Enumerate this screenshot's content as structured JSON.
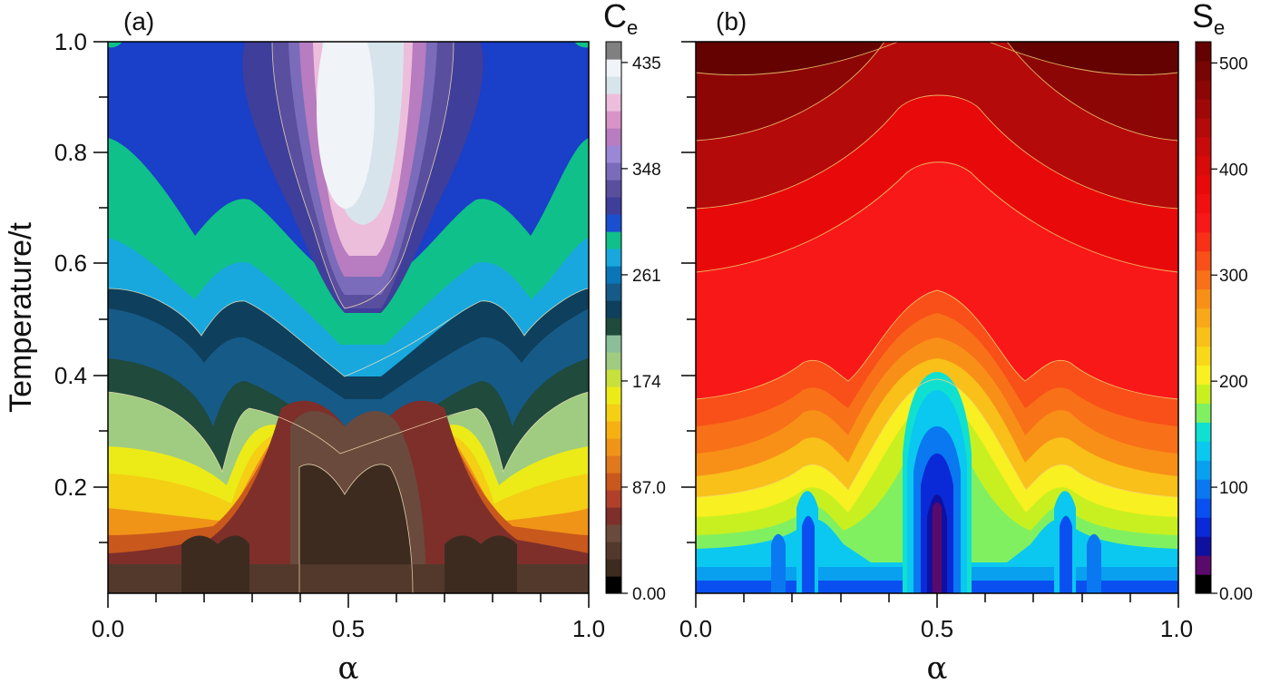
{
  "chart_data": [
    {
      "type": "heatmap",
      "panel_label": "(a)",
      "xlabel": "α",
      "ylabel": "Temperature/t",
      "xlim": [
        0.0,
        1.0
      ],
      "ylim": [
        0.0,
        1.0
      ],
      "x_ticks": [
        "0.0",
        "0.5",
        "1.0"
      ],
      "y_ticks": [
        "0.2",
        "0.4",
        "0.6",
        "0.8",
        "1.0"
      ],
      "colorbar": {
        "title": "C",
        "title_sub": "e",
        "range": [
          0,
          452
        ],
        "tick_values": [
          0,
          87,
          174,
          261,
          348,
          435
        ],
        "tick_labels": [
          "0.00",
          "87.0",
          "174",
          "261",
          "348",
          "435"
        ],
        "colors": [
          "#000000",
          "#3d2b20",
          "#52392b",
          "#6a4a3c",
          "#7e2f2a",
          "#b0402a",
          "#c9581c",
          "#e0781c",
          "#f09418",
          "#f6b012",
          "#f4cf14",
          "#eceb18",
          "#c8e03c",
          "#9fcc80",
          "#8bbf9a",
          "#1f4a3c",
          "#0e3f5c",
          "#165a88",
          "#0a76b8",
          "#18a8de",
          "#10c08a",
          "#1a4fd0",
          "#3f3e9a",
          "#5a4e9e",
          "#7a6cba",
          "#9a88d6",
          "#b87cc0",
          "#d894c8",
          "#ecbedc",
          "#d8e4ec",
          "#f0f4f8",
          "#808080"
        ]
      },
      "grid": false
    },
    {
      "type": "heatmap",
      "panel_label": "(b)",
      "xlabel": "α",
      "ylabel": "",
      "xlim": [
        0.0,
        1.0
      ],
      "ylim": [
        0.0,
        1.0
      ],
      "x_ticks": [
        "0.0",
        "0.5",
        "1.0"
      ],
      "colorbar": {
        "title": "S",
        "title_sub": "e",
        "range": [
          0,
          520
        ],
        "tick_values": [
          0,
          100,
          200,
          300,
          400,
          500
        ],
        "tick_labels": [
          "0.00",
          "100",
          "200",
          "300",
          "400",
          "500"
        ],
        "colors": [
          "#000000",
          "#5a0a6a",
          "#1010a0",
          "#0a2ad8",
          "#0a50f0",
          "#0a78f0",
          "#0aa0f0",
          "#0ac8f0",
          "#10e0d0",
          "#80f060",
          "#c8f020",
          "#f8f020",
          "#f8d818",
          "#f8c018",
          "#f8a818",
          "#f89018",
          "#f87018",
          "#f85018",
          "#f83018",
          "#f81818",
          "#f01010",
          "#e80a0a",
          "#d80a0a",
          "#c80a0a",
          "#b40a0a",
          "#a00808",
          "#8c0606",
          "#780404",
          "#640202"
        ]
      },
      "grid": false
    }
  ]
}
